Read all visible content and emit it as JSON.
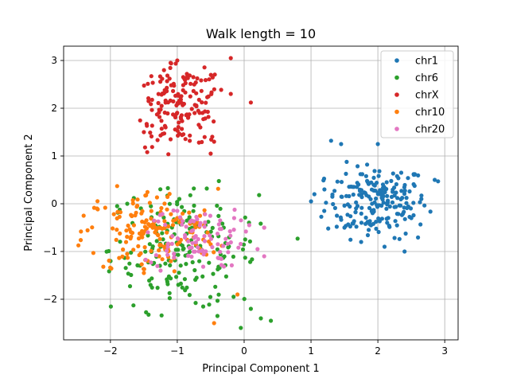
{
  "chart_data": {
    "type": "scatter",
    "title": "Walk length = 10",
    "xlabel": "Principal Component 1",
    "ylabel": "Principal Component 2",
    "xlim": [
      -2.7,
      3.2
    ],
    "ylim": [
      -2.85,
      3.3
    ],
    "xticks": [
      -2,
      -1,
      0,
      1,
      2,
      3
    ],
    "xtick_labels": [
      "−2",
      "−1",
      "0",
      "1",
      "2",
      "3"
    ],
    "yticks": [
      -2,
      -1,
      0,
      1,
      2,
      3
    ],
    "ytick_labels": [
      "−2",
      "−1",
      "0",
      "1",
      "2",
      "3"
    ],
    "grid": true,
    "legend_position": "top-right",
    "series": [
      {
        "name": "chr1",
        "color": "#1f77b4",
        "cluster": {
          "center": [
            1.98,
            0.05
          ],
          "spread": [
            0.38,
            0.38
          ],
          "count": 200
        },
        "points": [
          [
            1.3,
            1.32
          ],
          [
            1.45,
            1.25
          ],
          [
            2.0,
            1.25
          ],
          [
            2.35,
            0.65
          ],
          [
            2.85,
            0.5
          ],
          [
            2.9,
            0.47
          ],
          [
            2.65,
            0.1
          ],
          [
            1.0,
            0.05
          ],
          [
            1.2,
            0.3
          ],
          [
            1.05,
            0.2
          ],
          [
            2.4,
            -1.0
          ],
          [
            2.1,
            -0.9
          ],
          [
            1.75,
            -0.8
          ],
          [
            2.5,
            -0.3
          ],
          [
            1.5,
            -0.5
          ]
        ]
      },
      {
        "name": "chr6",
        "color": "#2ca02c",
        "cluster": {
          "center": [
            -0.9,
            -0.95
          ],
          "spread": [
            0.55,
            0.65
          ],
          "count": 180
        },
        "points": [
          [
            0.8,
            -0.73
          ],
          [
            0.4,
            -2.45
          ],
          [
            -0.05,
            -2.6
          ],
          [
            -1.65,
            0.12
          ],
          [
            -1.4,
            -1.7
          ],
          [
            0.25,
            -2.4
          ],
          [
            0.1,
            -2.2
          ],
          [
            -0.4,
            -2.35
          ],
          [
            -1.9,
            -0.05
          ],
          [
            -1.25,
            -0.9
          ]
        ]
      },
      {
        "name": "chrX",
        "color": "#d62728",
        "cluster": {
          "center": [
            -0.95,
            2.05
          ],
          "spread": [
            0.32,
            0.42
          ],
          "count": 160
        },
        "points": [
          [
            -1.1,
            2.95
          ],
          [
            -1.0,
            3.0
          ],
          [
            0.1,
            2.12
          ],
          [
            -1.45,
            1.08
          ],
          [
            -0.5,
            1.05
          ],
          [
            -0.2,
            2.3
          ],
          [
            -1.5,
            1.5
          ],
          [
            -0.45,
            1.3
          ],
          [
            -1.1,
            1.35
          ],
          [
            -0.2,
            3.05
          ]
        ]
      },
      {
        "name": "chr10",
        "color": "#ff7f0e",
        "cluster": {
          "center": [
            -1.4,
            -0.6
          ],
          "spread": [
            0.5,
            0.45
          ],
          "count": 160
        },
        "points": [
          [
            -1.9,
            0.37
          ],
          [
            -2.4,
            -0.25
          ],
          [
            -2.2,
            -0.1
          ],
          [
            -0.45,
            -2.5
          ],
          [
            -0.1,
            -1.9
          ],
          [
            -1.5,
            -1.45
          ],
          [
            -1.75,
            -1.05
          ],
          [
            -0.6,
            -0.45
          ],
          [
            -0.5,
            -0.85
          ],
          [
            -1.0,
            -0.3
          ]
        ]
      },
      {
        "name": "chr20",
        "color": "#e377c2",
        "cluster": {
          "center": [
            -0.75,
            -0.7
          ],
          "spread": [
            0.38,
            0.32
          ],
          "count": 90
        },
        "points": [
          [
            0.3,
            -0.5
          ],
          [
            0.2,
            -0.95
          ],
          [
            0.3,
            -1.1
          ],
          [
            0.3,
            -0.5
          ],
          [
            -0.15,
            -0.3
          ],
          [
            -1.05,
            -1.05
          ],
          [
            -1.25,
            -1.4
          ],
          [
            -1.0,
            -0.15
          ]
        ]
      }
    ]
  }
}
